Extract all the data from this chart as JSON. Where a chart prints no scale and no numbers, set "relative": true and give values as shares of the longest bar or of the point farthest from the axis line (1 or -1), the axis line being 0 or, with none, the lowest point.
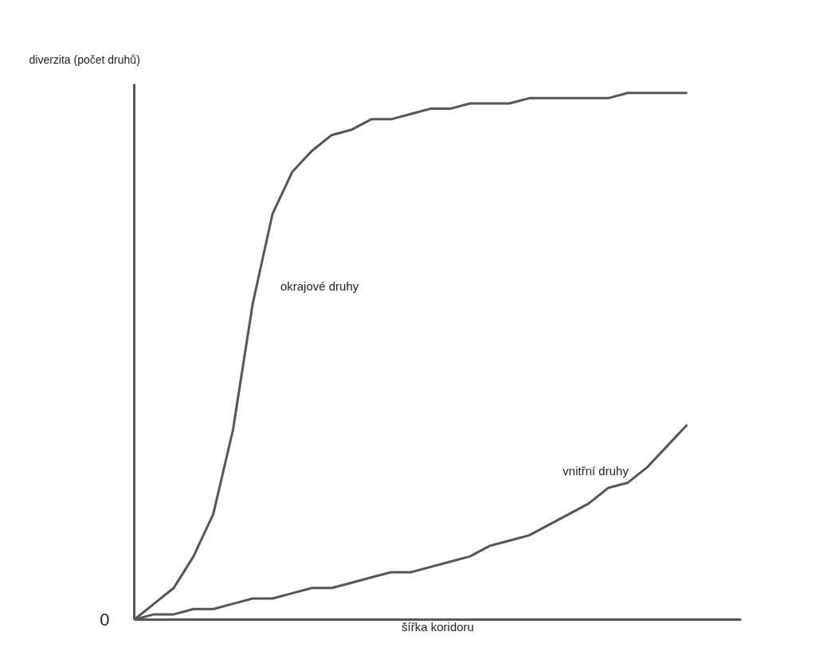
{
  "chart_data": {
    "type": "line",
    "relative": true,
    "xlabel": "šířka koridoru",
    "ylabel": "diverzita (počet druhů)",
    "annotations": [
      "0"
    ],
    "categories": [
      null,
      null,
      null,
      null,
      null,
      null,
      null,
      null,
      null,
      null,
      null,
      null,
      null,
      null,
      null,
      null,
      null,
      null,
      null,
      null,
      null,
      null,
      null,
      null,
      null,
      null,
      null,
      null,
      null
    ],
    "series": [
      {
        "name": "okrajové druhy",
        "color": "#555555",
        "values": [
          0,
          0.03,
          0.06,
          0.12,
          0.2,
          0.36,
          0.6,
          0.77,
          0.85,
          0.89,
          0.92,
          0.93,
          0.95,
          0.95,
          0.96,
          0.97,
          0.97,
          0.98,
          0.98,
          0.98,
          0.99,
          0.99,
          0.99,
          0.99,
          0.99,
          1.0,
          1.0,
          1.0,
          1
        ]
      },
      {
        "name": "vnitřní druhy",
        "color": "#555555",
        "values": [
          0,
          0.01,
          0.01,
          0.02,
          0.02,
          0.03,
          0.04,
          0.04,
          0.05,
          0.06,
          0.06,
          0.07,
          0.08,
          0.09,
          0.09,
          0.1,
          0.11,
          0.12,
          0.14,
          0.15,
          0.16,
          0.18,
          0.2,
          0.22,
          0.25,
          0.26,
          0.29,
          0.33,
          0.37
        ]
      }
    ],
    "legend": false,
    "marker": "none",
    "line_style": "solid"
  }
}
